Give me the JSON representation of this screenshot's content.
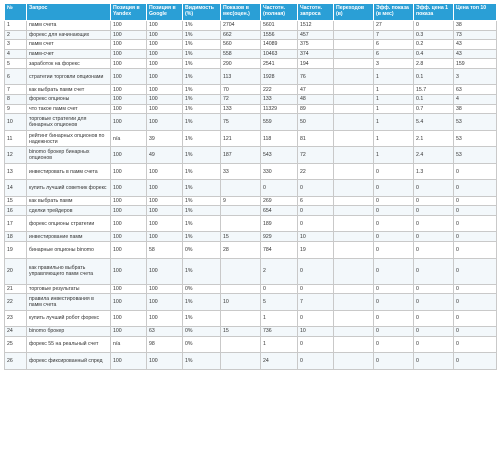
{
  "columns": [
    "№",
    "Запрос",
    "Позиция в Yandex",
    "Позиция в Google",
    "Видимость (%)",
    "Показов в мес(оцен.)",
    "Частотн. (полная)",
    "Частотн. запроса",
    "Переходов (в)",
    "Эфф. показа (в мес)",
    "Эфф. цена 1 показа",
    "Цена топ 10"
  ],
  "rows": [
    [
      "1",
      "памм счета",
      "100",
      "100",
      "1%",
      "2704",
      "5601",
      "1512",
      "",
      "27",
      "0",
      "38"
    ],
    [
      "2",
      "форекс для начинающих",
      "100",
      "100",
      "1%",
      "662",
      "1556",
      "457",
      "",
      "7",
      "0.3",
      "73"
    ],
    [
      "3",
      "памм счет",
      "100",
      "100",
      "1%",
      "560",
      "14089",
      "375",
      "",
      "6",
      "0.2",
      "43"
    ],
    [
      "4",
      "памм-счет",
      "100",
      "100",
      "1%",
      "558",
      "10463",
      "374",
      "",
      "6",
      "0.4",
      "43"
    ],
    [
      "5",
      "заработок на форекс",
      "100",
      "100",
      "1%",
      "290",
      "2541",
      "194",
      "",
      "3",
      "2.8",
      "159"
    ],
    [
      "6",
      "стратегии торговли опционами",
      "100",
      "100",
      "1%",
      "113",
      "1928",
      "76",
      "",
      "1",
      "0.1",
      "3"
    ],
    [
      "7",
      "как выбрать памм счет",
      "100",
      "100",
      "1%",
      "70",
      "222",
      "47",
      "",
      "1",
      "15.7",
      "63"
    ],
    [
      "8",
      "форекс опционы",
      "100",
      "100",
      "1%",
      "72",
      "133",
      "48",
      "",
      "1",
      "0.1",
      "4"
    ],
    [
      "9",
      "что такое памм счет",
      "100",
      "100",
      "1%",
      "133",
      "11329",
      "89",
      "",
      "1",
      "0.7",
      "38"
    ],
    [
      "10",
      "торговые стратегии для бинарных опционов",
      "100",
      "100",
      "1%",
      "75",
      "559",
      "50",
      "",
      "1",
      "5.4",
      "53"
    ],
    [
      "11",
      "рейтинг бинарных опционов по надежности",
      "n/a",
      "39",
      "1%",
      "121",
      "118",
      "81",
      "",
      "1",
      "2.1",
      "53"
    ],
    [
      "12",
      "binomo брокер бинарных опционов",
      "100",
      "49",
      "1%",
      "187",
      "543",
      "72",
      "",
      "1",
      "2.4",
      "53"
    ],
    [
      "13",
      "инвестировать в памм счета",
      "100",
      "100",
      "1%",
      "33",
      "330",
      "22",
      "",
      "0",
      "1.3",
      "0"
    ],
    [
      "14",
      "купить лучший советник форекс",
      "100",
      "100",
      "1%",
      "",
      "0",
      "0",
      "",
      "0",
      "0",
      "0"
    ],
    [
      "15",
      "как выбрать памм",
      "100",
      "100",
      "1%",
      "9",
      "269",
      "6",
      "",
      "0",
      "0",
      "0"
    ],
    [
      "16",
      "сделки трейдеров",
      "100",
      "100",
      "1%",
      "",
      "654",
      "0",
      "",
      "0",
      "0",
      "0"
    ],
    [
      "17",
      "форекс опционы стратегии",
      "100",
      "100",
      "1%",
      "",
      "189",
      "0",
      "",
      "0",
      "0",
      "0"
    ],
    [
      "18",
      "инвестирование памм",
      "100",
      "100",
      "1%",
      "15",
      "929",
      "10",
      "",
      "0",
      "0",
      "0"
    ],
    [
      "19",
      "бинарные опционы binomo",
      "100",
      "58",
      "0%",
      "28",
      "784",
      "19",
      "",
      "0",
      "0",
      "0"
    ],
    [
      "20",
      "как правильно выбрать управляющего памм счета",
      "100",
      "100",
      "1%",
      "",
      "2",
      "0",
      "",
      "0",
      "0",
      "0"
    ],
    [
      "21",
      "торговые результаты",
      "100",
      "100",
      "0%",
      "",
      "0",
      "0",
      "",
      "0",
      "0",
      "0"
    ],
    [
      "22",
      "правила инвестирования в памм счета",
      "100",
      "100",
      "1%",
      "10",
      "5",
      "7",
      "",
      "0",
      "0",
      "0"
    ],
    [
      "23",
      "купить лучший робот форекс",
      "100",
      "100",
      "1%",
      "",
      "1",
      "0",
      "",
      "0",
      "0",
      "0"
    ],
    [
      "24",
      "binomo брокер",
      "100",
      "63",
      "0%",
      "15",
      "736",
      "10",
      "",
      "0",
      "0",
      "0"
    ],
    [
      "25",
      "форекс 55 на реальный счет",
      "n/a",
      "98",
      "0%",
      "",
      "1",
      "0",
      "",
      "0",
      "0",
      "0"
    ],
    [
      "26",
      "форекс фиксированный спред",
      "100",
      "100",
      "1%",
      "",
      "24",
      "0",
      "",
      "0",
      "0",
      "0"
    ]
  ],
  "row_heights": [
    "n",
    "n",
    "n",
    "n",
    "n",
    "t",
    "n",
    "n",
    "n",
    "t",
    "t",
    "t",
    "t",
    "t",
    "n",
    "n",
    "t",
    "n",
    "t",
    "x",
    "n",
    "t",
    "t",
    "n",
    "t",
    "t"
  ],
  "colors": {
    "header_bg": "#2a9fd6",
    "header_text": "#ffffff",
    "border": "#c9c9c9",
    "stripe": "#f3f8fb"
  }
}
